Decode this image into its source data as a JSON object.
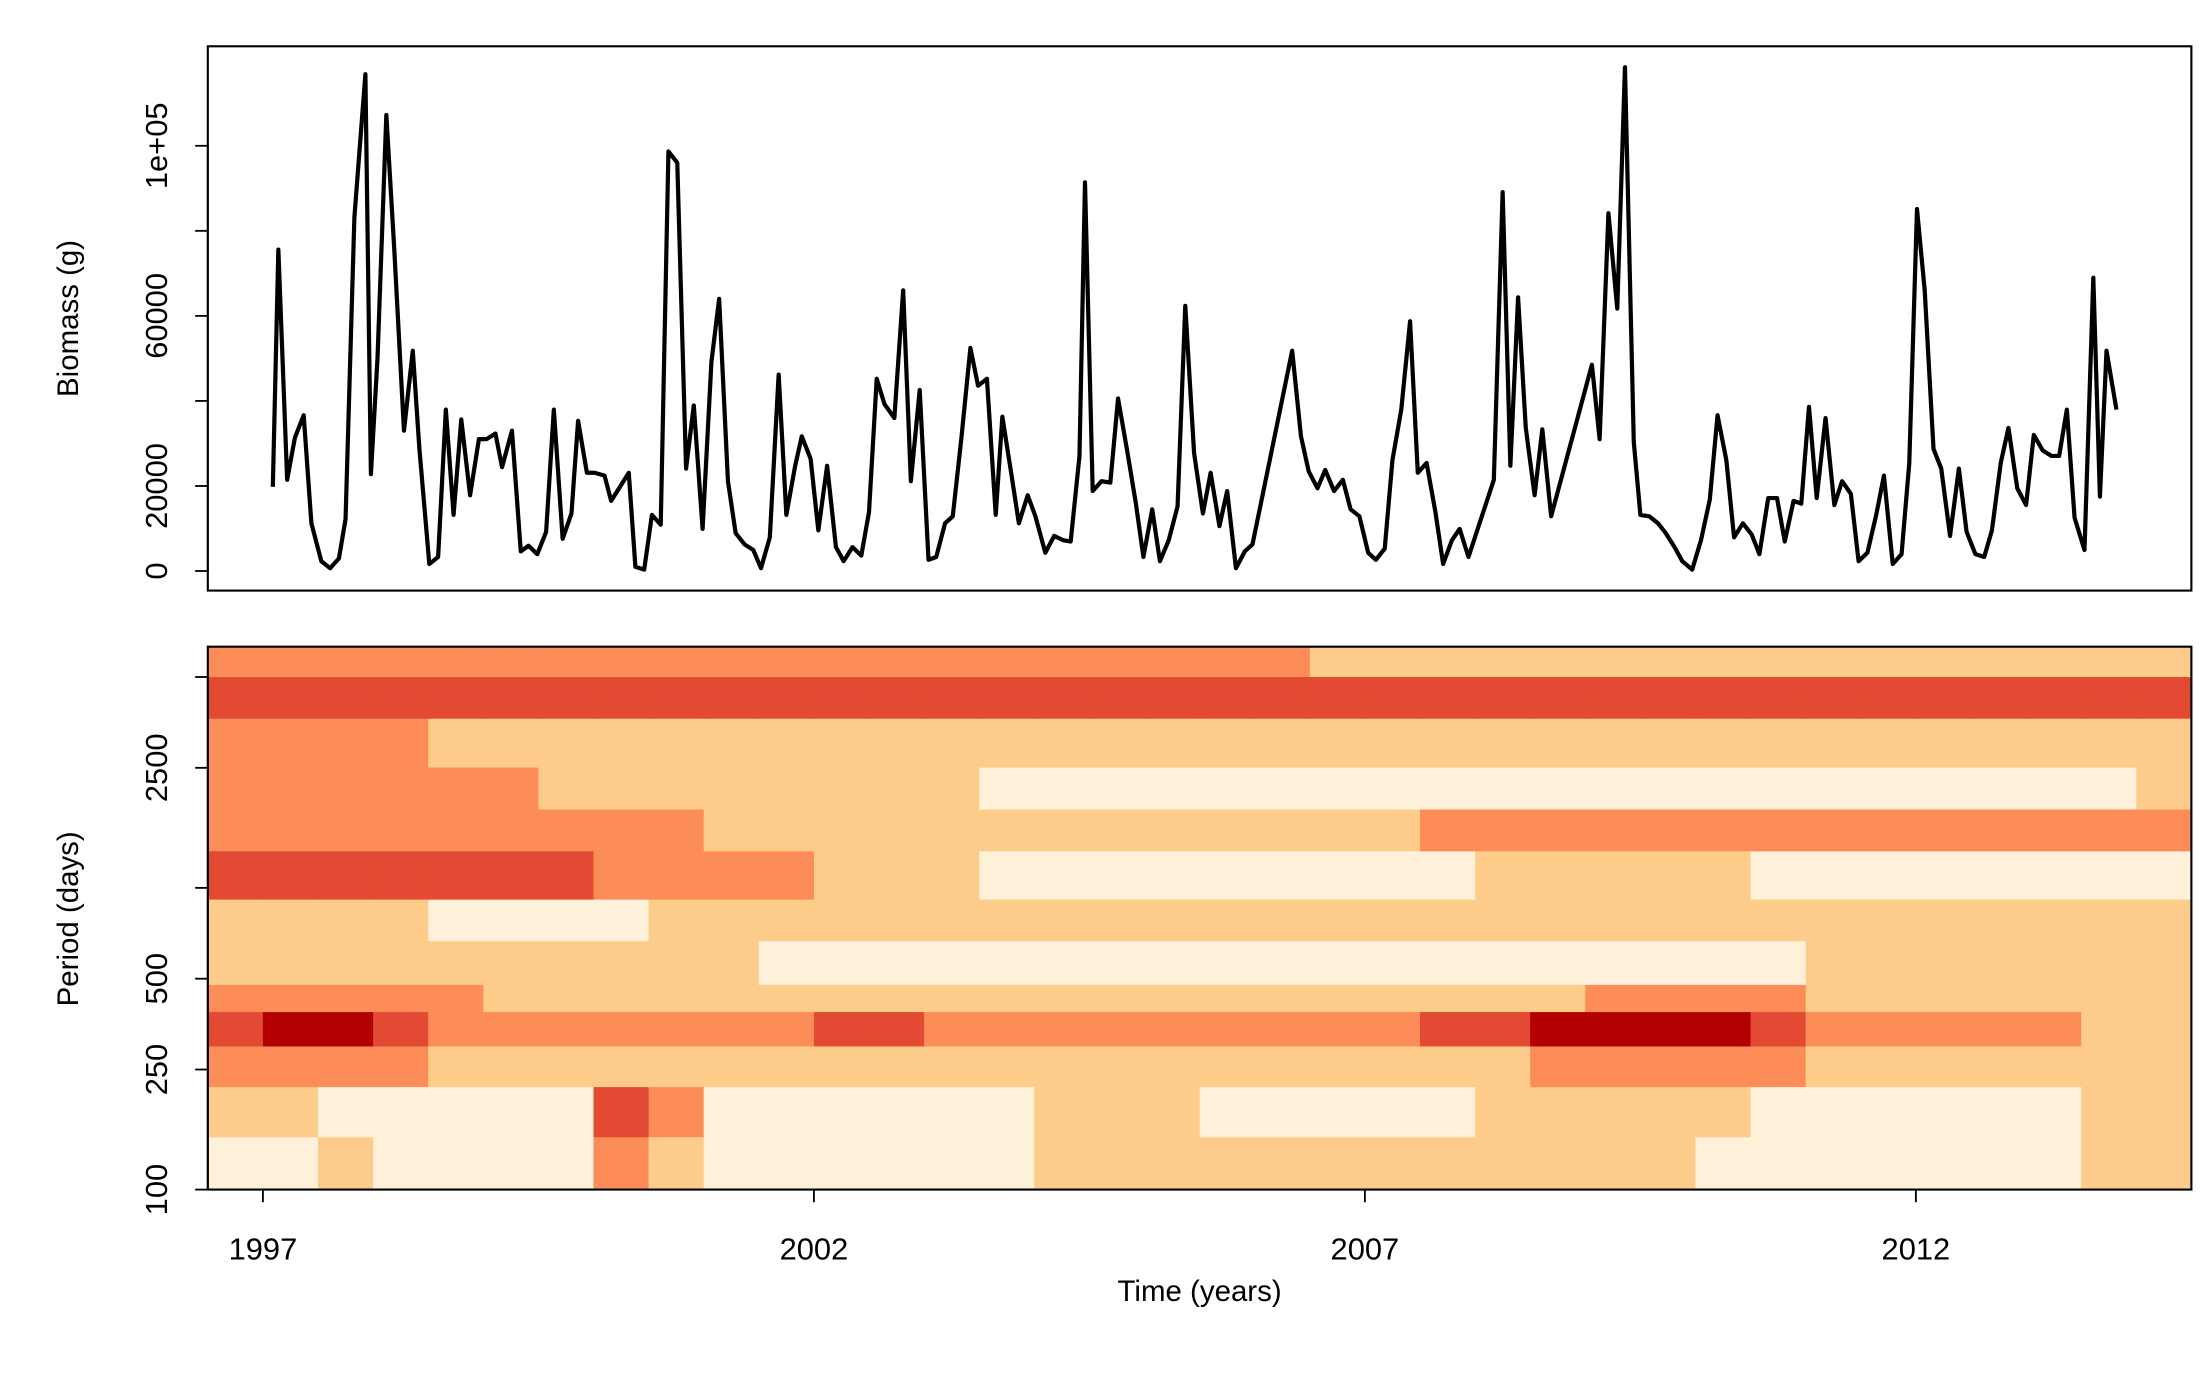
{
  "chart_data": [
    {
      "type": "line",
      "y_label": "Biomass (g)",
      "color": "#000000",
      "xlim": [
        1996.5,
        2014.5
      ],
      "ylim": [
        -4600,
        123400
      ],
      "yticks": [
        0,
        20000,
        60000,
        {
          "value": 100000,
          "label": "1e+05"
        }
      ],
      "minor_yticks": [
        40000,
        80000
      ],
      "x": [
        1997.09,
        1997.14,
        1997.22,
        1997.29,
        1997.37,
        1997.44,
        1997.53,
        1997.61,
        1997.69,
        1997.75,
        1997.83,
        1997.93,
        1997.98,
        1998.04,
        1998.12,
        1998.19,
        1998.28,
        1998.36,
        1998.42,
        1998.51,
        1998.59,
        1998.66,
        1998.73,
        1998.8,
        1998.88,
        1998.96,
        1999.03,
        1999.11,
        1999.17,
        1999.26,
        1999.34,
        1999.41,
        1999.49,
        1999.57,
        1999.64,
        1999.72,
        1999.8,
        1999.86,
        1999.94,
        2000.01,
        2000.1,
        2000.16,
        2000.24,
        2000.32,
        2000.38,
        2000.46,
        2000.53,
        2000.61,
        2000.68,
        2000.76,
        2000.84,
        2000.91,
        2000.99,
        2001.07,
        2001.14,
        2001.22,
        2001.29,
        2001.37,
        2001.45,
        2001.52,
        2001.6,
        2001.68,
        2001.75,
        2001.83,
        2001.89,
        2001.97,
        2002.04,
        2002.12,
        2002.2,
        2002.27,
        2002.35,
        2002.43,
        2002.5,
        2002.57,
        2002.64,
        2002.73,
        2002.81,
        2002.88,
        2002.96,
        2003.04,
        2003.11,
        2003.19,
        2003.26,
        2003.34,
        2003.42,
        2003.49,
        2003.57,
        2003.65,
        2003.71,
        2003.79,
        2003.86,
        2003.94,
        2004.01,
        2004.1,
        2004.18,
        2004.26,
        2004.33,
        2004.41,
        2004.46,
        2004.53,
        2004.61,
        2004.69,
        2004.76,
        2004.84,
        2004.92,
        2004.99,
        2005.07,
        2005.14,
        2005.22,
        2005.3,
        2005.37,
        2005.45,
        2005.53,
        2005.6,
        2005.68,
        2005.75,
        2005.83,
        2005.91,
        2005.98,
        2006.34,
        2006.42,
        2006.49,
        2006.57,
        2006.64,
        2006.72,
        2006.8,
        2006.87,
        2006.95,
        2007.03,
        2007.1,
        2007.18,
        2007.25,
        2007.33,
        2007.41,
        2007.48,
        2007.56,
        2007.64,
        2007.71,
        2007.79,
        2007.86,
        2007.94,
        2008.17,
        2008.25,
        2008.32,
        2008.39,
        2008.46,
        2008.54,
        2008.61,
        2008.69,
        2009.06,
        2009.13,
        2009.21,
        2009.29,
        2009.36,
        2009.44,
        2009.5,
        2009.58,
        2009.66,
        2009.73,
        2009.81,
        2009.88,
        2009.97,
        2010.05,
        2010.13,
        2010.2,
        2010.28,
        2010.35,
        2010.43,
        2010.51,
        2010.58,
        2010.66,
        2010.74,
        2010.81,
        2010.89,
        2010.96,
        2011.03,
        2011.1,
        2011.18,
        2011.26,
        2011.33,
        2011.41,
        2011.48,
        2011.56,
        2011.64,
        2011.71,
        2011.79,
        2011.87,
        2011.94,
        2012.01,
        2012.08,
        2012.16,
        2012.23,
        2012.31,
        2012.39,
        2012.46,
        2012.54,
        2012.62,
        2012.69,
        2012.77,
        2012.84,
        2012.92,
        2013.0,
        2013.07,
        2013.15,
        2013.23,
        2013.3,
        2013.37,
        2013.44,
        2013.53,
        2013.61,
        2013.67,
        2013.73,
        2013.82
      ],
      "values": [
        19800,
        75600,
        21450,
        31350,
        36630,
        11220,
        2310,
        660,
        2970,
        12210,
        83160,
        116820,
        22770,
        50160,
        107250,
        76560,
        33000,
        51810,
        28710,
        1650,
        3300,
        37950,
        13200,
        35640,
        17820,
        31020,
        31020,
        32340,
        24420,
        33000,
        4620,
        5940,
        3960,
        9240,
        37950,
        7590,
        13530,
        35310,
        23100,
        23100,
        22440,
        16500,
        19800,
        23100,
        990,
        330,
        13200,
        10890,
        98670,
        96030,
        24090,
        38940,
        9900,
        49170,
        64020,
        21120,
        8910,
        6270,
        4950,
        660,
        7920,
        46200,
        13200,
        24750,
        31680,
        26400,
        9570,
        24750,
        5610,
        2310,
        5610,
        3630,
        13860,
        45210,
        39270,
        35970,
        66000,
        21120,
        42570,
        2640,
        3300,
        11220,
        12870,
        31680,
        52470,
        43560,
        45210,
        13200,
        36300,
        23100,
        11220,
        17820,
        12870,
        4290,
        8250,
        7260,
        6930,
        27060,
        91410,
        18810,
        21120,
        20790,
        40590,
        28710,
        16170,
        3300,
        14520,
        2310,
        7260,
        15180,
        62370,
        27720,
        13530,
        23100,
        10560,
        18810,
        660,
        4620,
        6270,
        51810,
        31680,
        23430,
        19470,
        23760,
        18810,
        21450,
        14520,
        12870,
        4290,
        2640,
        5280,
        26070,
        37950,
        58740,
        23100,
        25410,
        13860,
        1650,
        7260,
        9900,
        3300,
        21450,
        89100,
        24750,
        64350,
        33660,
        17820,
        33330,
        12870,
        48510,
        31020,
        84150,
        61710,
        118470,
        30360,
        13200,
        12870,
        11220,
        8910,
        5610,
        2310,
        330,
        7260,
        16830,
        36630,
        26070,
        7920,
        11220,
        8580,
        3960,
        17160,
        17160,
        6930,
        16500,
        15840,
        38610,
        17160,
        35970,
        15510,
        21120,
        18150,
        2310,
        4290,
        13200,
        22440,
        1650,
        3960,
        25410,
        85140,
        66000,
        28710,
        24090,
        8250,
        24090,
        9240,
        3960,
        3300,
        9570,
        25410,
        33660,
        19470,
        15510,
        32010,
        28380,
        27060,
        27060,
        37950,
        12540,
        4950,
        68970,
        17490,
        51810,
        37950
      ]
    },
    {
      "type": "heatmap",
      "x_label": "Time (years)",
      "y_label": "Period (days)",
      "log_y": true,
      "xlim": [
        1996.5,
        2014.5
      ],
      "ylim": [
        100,
        6300
      ],
      "xticks": [
        1997,
        2002,
        2007,
        2012
      ],
      "yticks": [
        100,
        250,
        500,
        2500
      ],
      "minor_yticks": [
        1000,
        5000
      ],
      "colors": [
        "#fef0d9",
        "#fdcc8a",
        "#fc8d59",
        "#e34a33",
        "#b30000"
      ],
      "x_edges": [
        1996.5,
        1997,
        1997.5,
        1998,
        1998.5,
        1999,
        1999.5,
        2000,
        2000.5,
        2001,
        2001.5,
        2002,
        2002.5,
        2003,
        2003.5,
        2004,
        2004.5,
        2005,
        2005.5,
        2006,
        2006.5,
        2007,
        2007.5,
        2008,
        2008.5,
        2009,
        2009.5,
        2010,
        2010.5,
        2011,
        2011.5,
        2012,
        2012.5,
        2013,
        2013.5,
        2014,
        2014.5
      ],
      "y_edges": [
        100,
        150,
        220,
        300,
        390,
        480,
        670,
        920,
        1330,
        1830,
        2520,
        3660,
        5030,
        6300
      ],
      "z": [
        [
          0,
          0,
          1,
          0,
          0,
          0,
          0,
          2,
          1,
          0,
          0,
          0,
          0,
          0,
          0,
          1,
          1,
          1,
          1,
          1,
          1,
          1,
          1,
          1,
          1,
          1,
          1,
          0,
          0,
          0,
          0,
          0,
          0,
          0,
          1,
          1
        ],
        [
          1,
          1,
          0,
          0,
          0,
          0,
          0,
          3,
          2,
          0,
          0,
          0,
          0,
          0,
          0,
          1,
          1,
          1,
          0,
          0,
          0,
          0,
          0,
          1,
          1,
          1,
          1,
          1,
          0,
          0,
          0,
          0,
          0,
          0,
          1,
          1
        ],
        [
          2,
          2,
          2,
          2,
          1,
          1,
          1,
          1,
          1,
          1,
          1,
          1,
          1,
          1,
          1,
          1,
          1,
          1,
          1,
          1,
          1,
          1,
          1,
          1,
          2,
          2,
          2,
          2,
          2,
          1,
          1,
          1,
          1,
          1,
          1,
          1
        ],
        [
          3,
          4,
          4,
          3,
          2,
          2,
          2,
          2,
          2,
          2,
          2,
          3,
          3,
          2,
          2,
          2,
          2,
          2,
          2,
          2,
          2,
          2,
          3,
          3,
          4,
          4,
          4,
          4,
          3,
          2,
          2,
          2,
          2,
          2,
          1,
          1
        ],
        [
          2,
          2,
          2,
          2,
          2,
          1,
          1,
          1,
          1,
          1,
          1,
          1,
          1,
          1,
          1,
          1,
          1,
          1,
          1,
          1,
          1,
          1,
          1,
          1,
          1,
          2,
          2,
          2,
          2,
          1,
          1,
          1,
          1,
          1,
          1,
          1
        ],
        [
          1,
          1,
          1,
          1,
          1,
          1,
          1,
          1,
          1,
          1,
          0,
          0,
          0,
          0,
          0,
          0,
          0,
          0,
          0,
          0,
          0,
          0,
          0,
          0,
          0,
          0,
          0,
          0,
          0,
          1,
          1,
          1,
          1,
          1,
          1,
          1
        ],
        [
          1,
          1,
          1,
          1,
          0,
          0,
          0,
          0,
          1,
          1,
          1,
          1,
          1,
          1,
          1,
          1,
          1,
          1,
          1,
          1,
          1,
          1,
          1,
          1,
          1,
          1,
          1,
          1,
          1,
          1,
          1,
          1,
          1,
          1,
          1,
          1
        ],
        [
          3,
          3,
          3,
          3,
          3,
          3,
          3,
          2,
          2,
          2,
          2,
          1,
          1,
          1,
          0,
          0,
          0,
          0,
          0,
          0,
          0,
          0,
          0,
          1,
          1,
          1,
          1,
          1,
          0,
          0,
          0,
          0,
          0,
          0,
          0,
          0
        ],
        [
          2,
          2,
          2,
          2,
          2,
          2,
          2,
          2,
          2,
          1,
          1,
          1,
          1,
          1,
          1,
          1,
          1,
          1,
          1,
          1,
          1,
          1,
          2,
          2,
          2,
          2,
          2,
          2,
          2,
          2,
          2,
          2,
          2,
          2,
          2,
          2
        ],
        [
          2,
          2,
          2,
          2,
          2,
          2,
          1,
          1,
          1,
          1,
          1,
          1,
          1,
          1,
          0,
          0,
          0,
          0,
          0,
          0,
          0,
          0,
          0,
          0,
          0,
          0,
          0,
          0,
          0,
          0,
          0,
          0,
          0,
          0,
          0,
          1
        ],
        [
          2,
          2,
          2,
          2,
          1,
          1,
          1,
          1,
          1,
          1,
          1,
          1,
          1,
          1,
          1,
          1,
          1,
          1,
          1,
          1,
          1,
          1,
          1,
          1,
          1,
          1,
          1,
          1,
          1,
          1,
          1,
          1,
          1,
          1,
          1,
          1
        ],
        [
          3,
          3,
          3,
          3,
          3,
          3,
          3,
          3,
          3,
          3,
          3,
          3,
          3,
          3,
          3,
          3,
          3,
          3,
          3,
          3,
          3,
          3,
          3,
          3,
          3,
          3,
          3,
          3,
          3,
          3,
          3,
          3,
          3,
          3,
          3,
          3
        ],
        [
          2,
          2,
          2,
          2,
          2,
          2,
          2,
          2,
          2,
          2,
          2,
          2,
          2,
          2,
          2,
          2,
          2,
          2,
          2,
          2,
          1,
          1,
          1,
          1,
          1,
          1,
          1,
          1,
          1,
          1,
          1,
          1,
          1,
          1,
          1,
          1
        ]
      ]
    }
  ]
}
